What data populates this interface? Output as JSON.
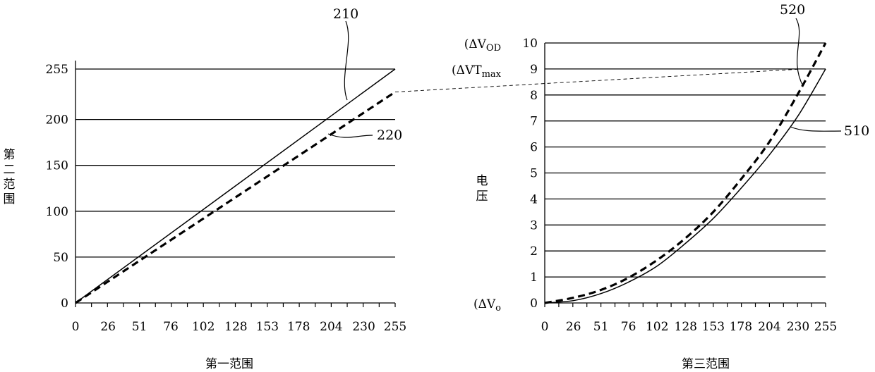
{
  "chart_data": [
    {
      "type": "line",
      "xlabel": "第一范围",
      "ylabel": "第二范围",
      "x_ticks": [
        "0",
        "26",
        "51",
        "76",
        "102",
        "128",
        "153",
        "178",
        "204",
        "230",
        "255"
      ],
      "y_ticks": [
        "0",
        "50",
        "100",
        "150",
        "200",
        "255"
      ],
      "xlim": [
        0,
        255
      ],
      "ylim": [
        0,
        255
      ],
      "grid": "horizontal",
      "series": [
        {
          "name": "210",
          "style": "solid",
          "x": [
            0,
            255
          ],
          "y": [
            0,
            255
          ]
        },
        {
          "name": "220",
          "style": "dashed",
          "x": [
            0,
            51,
            102,
            153,
            204,
            255
          ],
          "y": [
            0,
            46,
            92,
            138,
            184,
            230
          ]
        }
      ]
    },
    {
      "type": "line",
      "xlabel": "第三范围",
      "ylabel": "电压",
      "x_ticks": [
        "0",
        "26",
        "51",
        "76",
        "102",
        "128",
        "153",
        "178",
        "204",
        "230",
        "255"
      ],
      "y_ticks": [
        "0",
        "1",
        "2",
        "3",
        "4",
        "5",
        "6",
        "7",
        "8",
        "9",
        "10"
      ],
      "xlim": [
        0,
        255
      ],
      "ylim": [
        0,
        10
      ],
      "grid": "horizontal",
      "y_annotations": [
        {
          "value": 0,
          "base": "(ΔV",
          "sub": "o"
        },
        {
          "value": 9,
          "base": "(ΔVT",
          "sub": "max"
        },
        {
          "value": 10,
          "base": "(ΔV",
          "sub": "OD"
        }
      ],
      "series": [
        {
          "name": "510",
          "style": "solid",
          "x": [
            0,
            26,
            51,
            76,
            102,
            128,
            153,
            178,
            204,
            230,
            255
          ],
          "y": [
            0,
            0.09,
            0.36,
            0.8,
            1.42,
            2.3,
            3.25,
            4.4,
            5.7,
            7.2,
            9.0
          ]
        },
        {
          "name": "520",
          "style": "dashed",
          "x": [
            0,
            26,
            51,
            76,
            102,
            128,
            153,
            178,
            204,
            230,
            255
          ],
          "y": [
            0,
            0.2,
            0.5,
            0.97,
            1.65,
            2.5,
            3.5,
            4.75,
            6.2,
            8.05,
            10.0
          ]
        }
      ]
    }
  ]
}
